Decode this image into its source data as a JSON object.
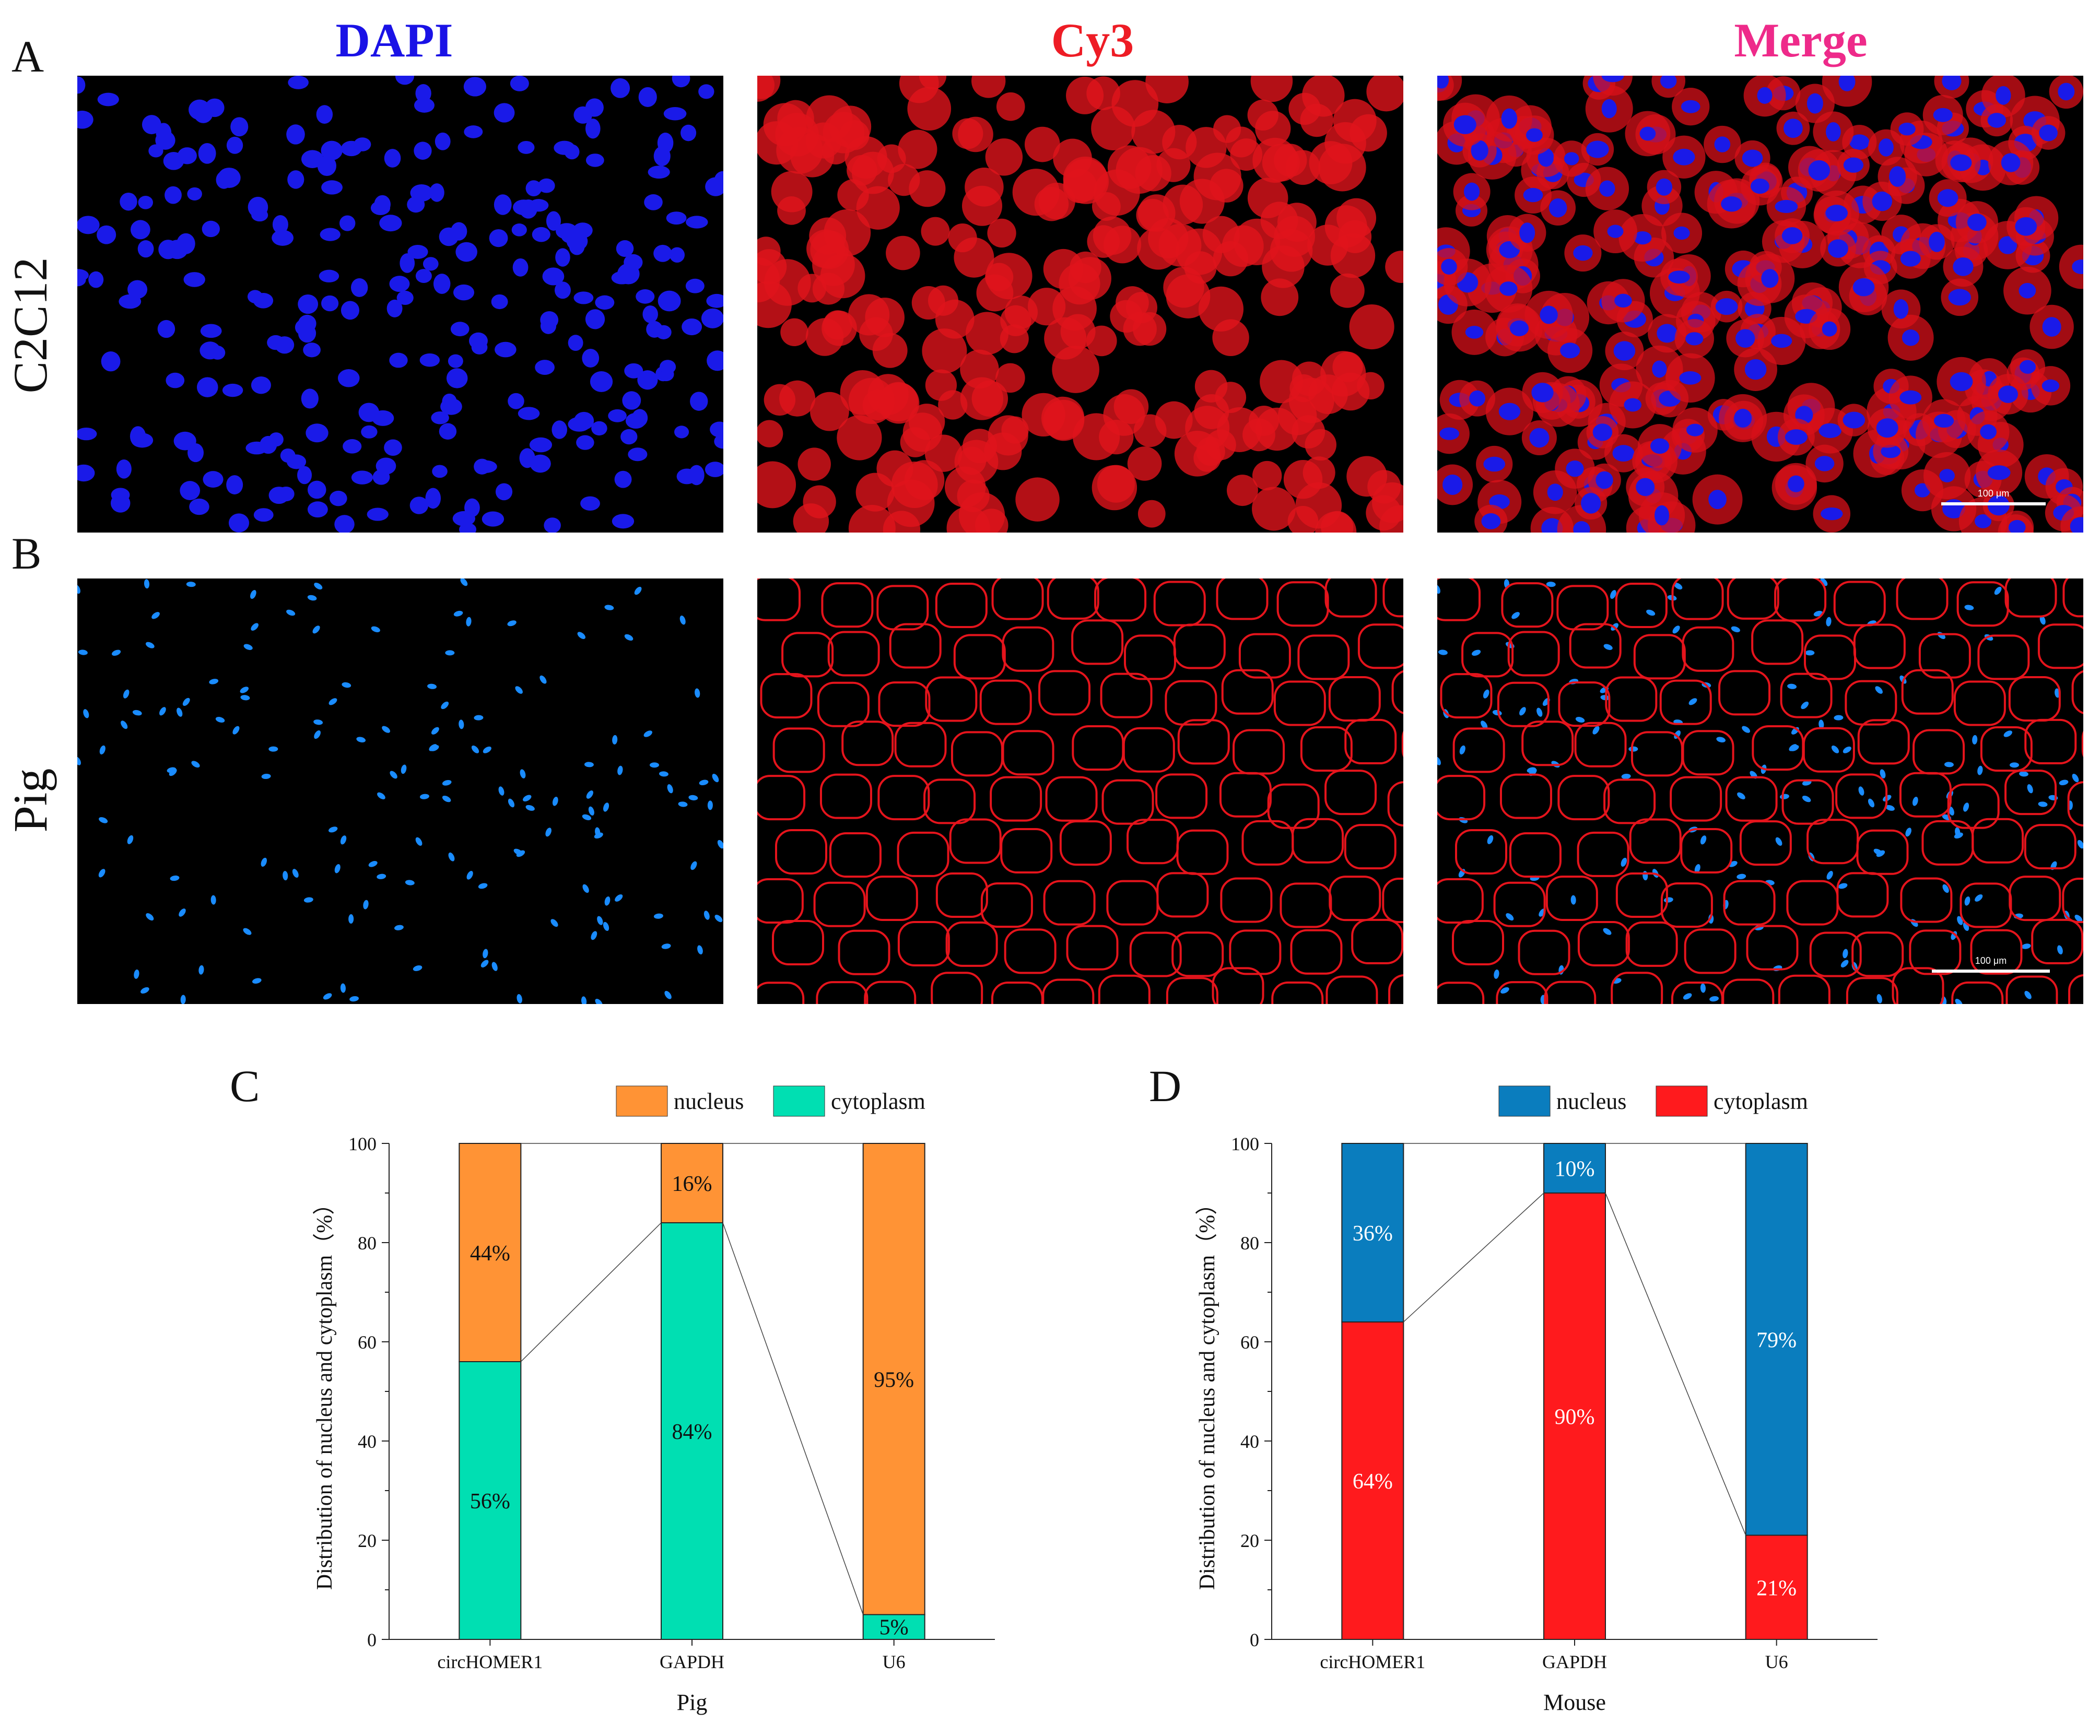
{
  "panels": {
    "A": "A",
    "B": "B",
    "C": "C",
    "D": "D"
  },
  "columns": [
    {
      "label": "DAPI",
      "color": "#1a12e6"
    },
    {
      "label": "Cy3",
      "color": "#ee1c25"
    },
    {
      "label": "Merge",
      "color": "#ee2a8a"
    }
  ],
  "rows": [
    {
      "label": "C2C12"
    },
    {
      "label": "Pig"
    }
  ],
  "scale_bar": {
    "row1": "100 μm",
    "row2": "100 μm"
  },
  "chart_data": [
    {
      "type": "bar",
      "stacked": true,
      "title": "",
      "xlabel": "Pig",
      "ylabel": "Distribution of nucleus and cytoplasm（%）",
      "categories": [
        "circHOMER1",
        "GAPDH",
        "U6"
      ],
      "ylim": [
        0,
        100
      ],
      "yticks": [
        0,
        20,
        40,
        60,
        80,
        100
      ],
      "legend_position": "top",
      "series": [
        {
          "name": "cytoplasm",
          "color": "#00dfb2",
          "values": [
            56,
            84,
            5
          ],
          "labels": [
            "56%",
            "84%",
            "5%"
          ]
        },
        {
          "name": "nucleus",
          "color": "#ff9335",
          "values": [
            44,
            16,
            95
          ],
          "labels": [
            "44%",
            "16%",
            "95%"
          ]
        }
      ],
      "legend": [
        {
          "name": "nucleus",
          "color": "#ff9335"
        },
        {
          "name": "cytoplasm",
          "color": "#00dfb2"
        }
      ],
      "label_color": "#111111"
    },
    {
      "type": "bar",
      "stacked": true,
      "title": "",
      "xlabel": "Mouse",
      "ylabel": "Distribution of nucleus and cytoplasm（%）",
      "categories": [
        "circHOMER1",
        "GAPDH",
        "U6"
      ],
      "ylim": [
        0,
        100
      ],
      "yticks": [
        0,
        20,
        40,
        60,
        80,
        100
      ],
      "legend_position": "top",
      "series": [
        {
          "name": "cytoplasm",
          "color": "#ff1a1d",
          "values": [
            64,
            90,
            21
          ],
          "labels": [
            "64%",
            "90%",
            "21%"
          ]
        },
        {
          "name": "nucleus",
          "color": "#0a7dbe",
          "values": [
            36,
            10,
            79
          ],
          "labels": [
            "36%",
            "10%",
            "79%"
          ]
        }
      ],
      "legend": [
        {
          "name": "nucleus",
          "color": "#0a7dbe"
        },
        {
          "name": "cytoplasm",
          "color": "#ff1a1d"
        }
      ],
      "label_color": "#ffffff"
    }
  ]
}
